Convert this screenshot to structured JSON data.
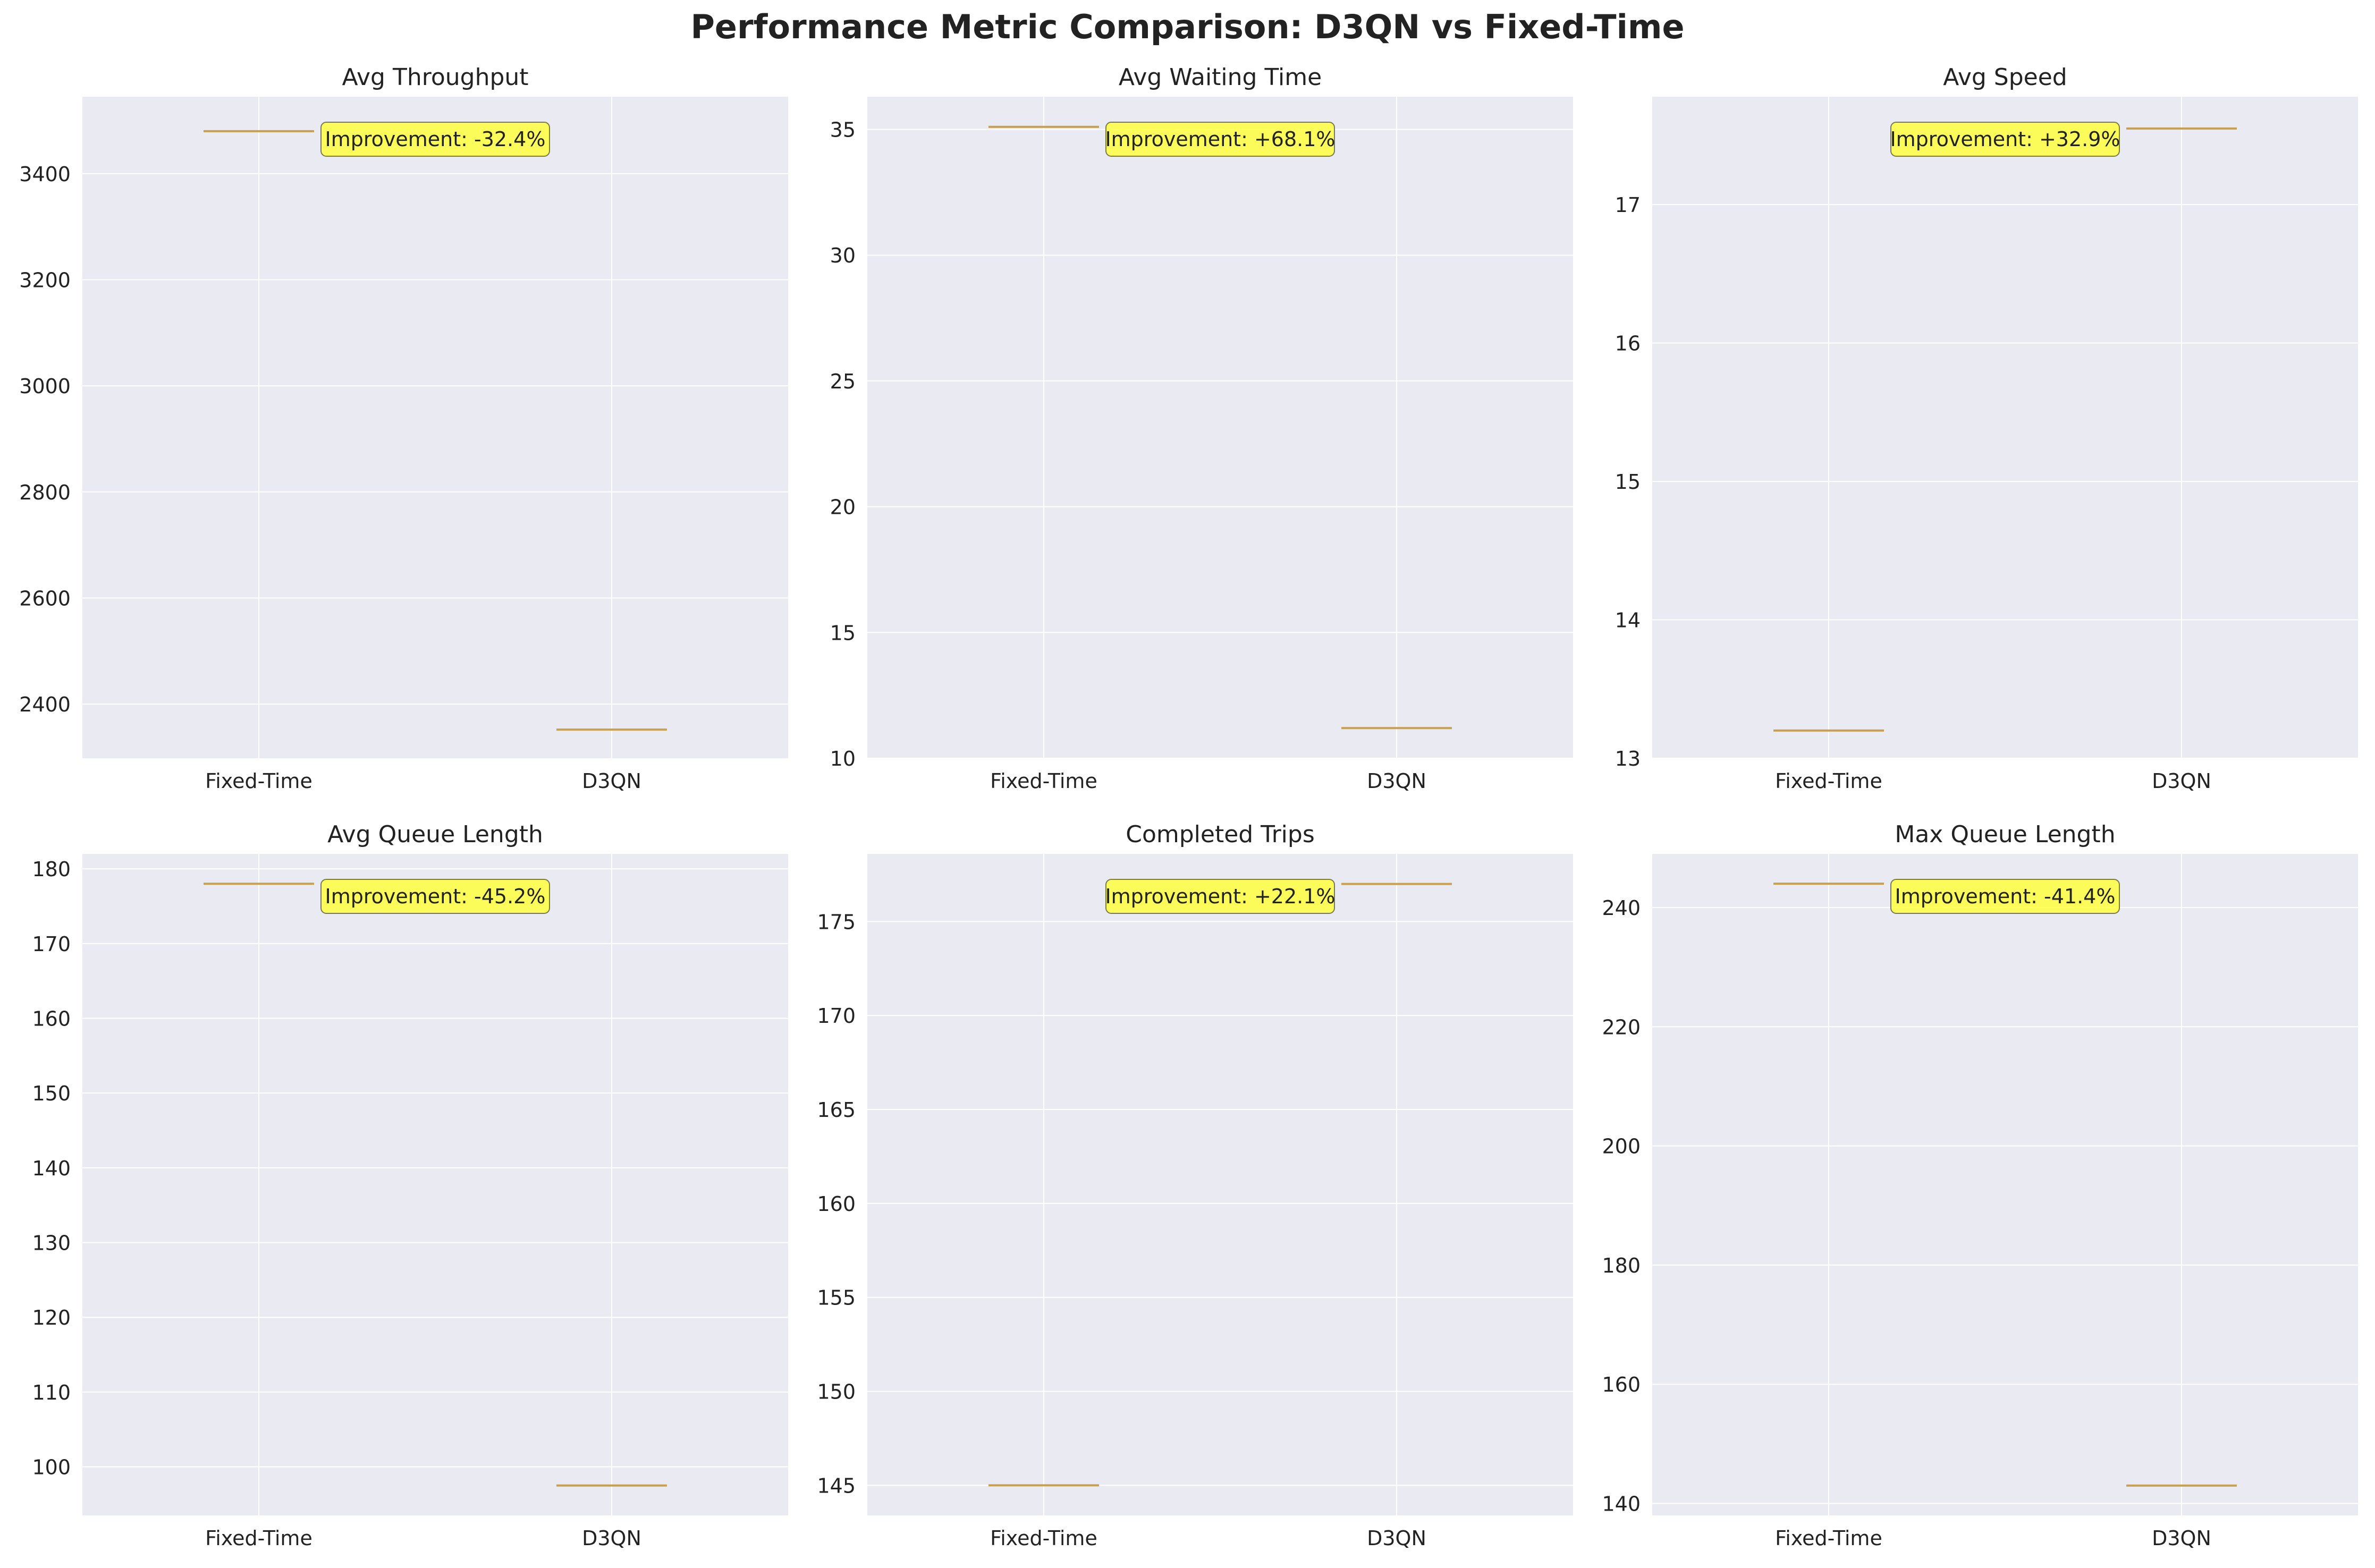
{
  "suptitle": "Performance Metric Comparison: D3QN vs Fixed-Time",
  "colors": {
    "axes_bg": "#eaeaf2",
    "grid": "#ffffff",
    "median": "#c8a050",
    "annotation_bg": "#ffff33",
    "text": "#222222"
  },
  "chart_data": [
    {
      "type": "box",
      "title": "Avg Throughput",
      "categories": [
        "Fixed-Time",
        "D3QN"
      ],
      "values": [
        3480,
        2352
      ],
      "ylim": [
        2298,
        3545
      ],
      "yticks": [
        2400,
        2600,
        2800,
        3000,
        3200,
        3400
      ],
      "annotation": "Improvement: -32.4%",
      "grid": true
    },
    {
      "type": "box",
      "title": "Avg Waiting Time",
      "categories": [
        "Fixed-Time",
        "D3QN"
      ],
      "values": [
        35.1,
        11.2
      ],
      "ylim": [
        10,
        36.3
      ],
      "yticks": [
        10,
        15,
        20,
        25,
        30,
        35
      ],
      "annotation": "Improvement: +68.1%",
      "grid": true
    },
    {
      "type": "box",
      "title": "Avg Speed",
      "categories": [
        "Fixed-Time",
        "D3QN"
      ],
      "values": [
        13.2,
        17.55
      ],
      "ylim": [
        13,
        17.78
      ],
      "yticks": [
        13,
        14,
        15,
        16,
        17
      ],
      "annotation": "Improvement: +32.9%",
      "grid": true
    },
    {
      "type": "box",
      "title": "Avg Queue Length",
      "categories": [
        "Fixed-Time",
        "D3QN"
      ],
      "values": [
        178,
        97.5
      ],
      "ylim": [
        93.5,
        182
      ],
      "yticks": [
        100,
        110,
        120,
        130,
        140,
        150,
        160,
        170,
        180
      ],
      "annotation": "Improvement: -45.2%",
      "grid": true
    },
    {
      "type": "box",
      "title": "Completed Trips",
      "categories": [
        "Fixed-Time",
        "D3QN"
      ],
      "values": [
        145,
        177
      ],
      "ylim": [
        143.4,
        178.6
      ],
      "yticks": [
        145,
        150,
        155,
        160,
        165,
        170,
        175
      ],
      "annotation": "Improvement: +22.1%",
      "grid": true
    },
    {
      "type": "box",
      "title": "Max Queue Length",
      "categories": [
        "Fixed-Time",
        "D3QN"
      ],
      "values": [
        244,
        143
      ],
      "ylim": [
        138,
        249
      ],
      "yticks": [
        140,
        160,
        180,
        200,
        220,
        240
      ],
      "annotation": "Improvement: -41.4%",
      "grid": true
    }
  ]
}
